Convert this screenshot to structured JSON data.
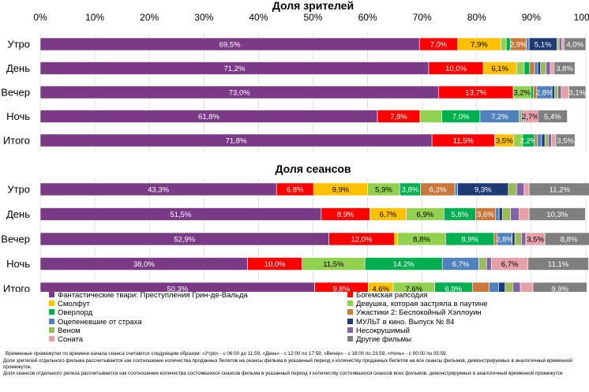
{
  "colors": {
    "Фантастические твари: Преступления Грин-де-Вальда": "#7b3a86",
    "Богемская рапсодия": "#ff0000",
    "Смолфут": "#ffc000",
    "Девушка, которая застряла в паутине": "#92d050",
    "Оверлорд": "#00b050",
    "Ужастики 2: Беспокойный Хэллоуин": "#c9783a",
    "Оцепеневшие от страха": "#4f81bd",
    "МУЛЬТ в кино. Выпуск № 84": "#1f3a73",
    "Веном": "#9bbb59",
    "Несокрушимый": "#8064a2",
    "Соната": "#e6a0a8",
    "Другие фильмы": "#7f7f7f"
  },
  "chart_data": {
    "type": "bar",
    "orientation": "horizontal-stacked-100",
    "axis_ticks": [
      "0%",
      "10%",
      "20%",
      "30%",
      "40%",
      "50%",
      "60%",
      "70%",
      "80%",
      "90%",
      "100%"
    ],
    "xlim": [
      0,
      100
    ],
    "legend": [
      "Фантастические твари: Преступления Грин-де-Вальда",
      "Богемская рапсодия",
      "Смолфут",
      "Девушка, которая застряла в паутине",
      "Оверлорд",
      "Ужастики 2: Беспокойный Хэллоуин",
      "Оцепеневшие от страха",
      "МУЛЬТ в кино. Выпуск № 84",
      "Веном",
      "Несокрушимый",
      "Соната",
      "Другие фильмы"
    ],
    "panels": [
      {
        "title": "Доля зрителей",
        "categories": [
          "Утро",
          "День",
          "Вечер",
          "Ночь",
          "Итого"
        ],
        "series": [
          {
            "name": "Фантастические твари: Преступления Грин-де-Вальда",
            "values": [
              69.5,
              71.2,
              73.0,
              61.8,
              71.8
            ],
            "labels": [
              "69,5%",
              "71,2%",
              "73,0%",
              "61,8%",
              "71,8%"
            ]
          },
          {
            "name": "Богемская рапсодия",
            "values": [
              7.0,
              10.0,
              13.7,
              7.8,
              11.5
            ],
            "labels": [
              "7,0%",
              "10,0%",
              "13,7%",
              "7,8%",
              "11,5%"
            ]
          },
          {
            "name": "Смолфут",
            "values": [
              7.9,
              6.1,
              0.0,
              0.0,
              3.5
            ],
            "labels": [
              "7,9%",
              "6,1%",
              "",
              "",
              "3,5%"
            ]
          },
          {
            "name": "Девушка, которая застряла в паутине",
            "values": [
              1.0,
              1.4,
              3.2,
              4.0,
              1.6
            ],
            "labels": [
              "",
              "",
              "3,2%",
              "",
              ""
            ]
          },
          {
            "name": "Оверлорд",
            "values": [
              0.8,
              1.0,
              0.5,
              7.0,
              2.2
            ],
            "labels": [
              "",
              "",
              "",
              "7,0%",
              "2,2%"
            ]
          },
          {
            "name": "Ужастики 2: Беспокойный Хэллоуин",
            "values": [
              2.9,
              0.9,
              0.6,
              0.0,
              0.5
            ],
            "labels": [
              "2,9%",
              "",
              "",
              "",
              ""
            ]
          },
          {
            "name": "Оцепеневшие от страха",
            "values": [
              0.5,
              0.6,
              2.8,
              7.2,
              0.8
            ],
            "labels": [
              "",
              "",
              "2,8%",
              "7,2%",
              ""
            ]
          },
          {
            "name": "МУЛЬТ в кино. Выпуск № 84",
            "values": [
              5.1,
              0.5,
              0.5,
              0.0,
              0.6
            ],
            "labels": [
              "5,1%",
              "",
              "",
              "",
              ""
            ]
          },
          {
            "name": "Веном",
            "values": [
              0.4,
              1.0,
              0.6,
              0.4,
              0.6
            ],
            "labels": [
              "",
              "",
              "",
              "",
              ""
            ]
          },
          {
            "name": "Несокрушимый",
            "values": [
              0.5,
              0.8,
              0.6,
              0.3,
              0.6
            ],
            "labels": [
              "",
              "",
              "",
              "",
              ""
            ]
          },
          {
            "name": "Соната",
            "values": [
              0.4,
              0.7,
              1.4,
              2.7,
              0.8
            ],
            "labels": [
              "",
              "",
              "",
              "2,7%",
              ""
            ]
          },
          {
            "name": "Другие фильмы",
            "values": [
              4.0,
              3.8,
              3.1,
              5.4,
              3.5
            ],
            "labels": [
              "4,0%",
              "3,8%",
              "3,1%",
              "5,4%",
              "3,5%"
            ]
          }
        ]
      },
      {
        "title": "Доля сеансов",
        "categories": [
          "Утро",
          "День",
          "Вечер",
          "Ночь",
          "Итого"
        ],
        "series": [
          {
            "name": "Фантастические твари: Преступления Грин-де-Вальда",
            "values": [
              43.3,
              51.5,
              52.9,
              38.0,
              50.3
            ],
            "labels": [
              "43,3%",
              "51,5%",
              "52,9%",
              "38,0%",
              "50,3%"
            ]
          },
          {
            "name": "Богемская рапсодия",
            "values": [
              6.8,
              8.9,
              12.0,
              10.0,
              9.8
            ],
            "labels": [
              "6,8%",
              "8,9%",
              "12,0%",
              "10,0%",
              "9,8%"
            ]
          },
          {
            "name": "Смолфут",
            "values": [
              9.9,
              6.7,
              0.6,
              0.0,
              4.6
            ],
            "labels": [
              "9,9%",
              "6,7%",
              "",
              "",
              "4,6%"
            ]
          },
          {
            "name": "Девушка, которая застряла в паутине",
            "values": [
              5.9,
              6.9,
              8.8,
              11.5,
              7.6
            ],
            "labels": [
              "5,9%",
              "6,9%",
              "8,8%",
              "11,5%",
              "7,6%"
            ]
          },
          {
            "name": "Оверлорд",
            "values": [
              3.8,
              5.8,
              8.9,
              14.2,
              6.9
            ],
            "labels": [
              "3,8%",
              "5,8%",
              "8,9%",
              "14,2%",
              "6,9%"
            ]
          },
          {
            "name": "Ужастики 2: Беспокойный Хэллоуин",
            "values": [
              6.3,
              3.6,
              0.5,
              0.0,
              3.1
            ],
            "labels": [
              "6,3%",
              "3,6%",
              "",
              "",
              ""
            ]
          },
          {
            "name": "Оцепеневшие от страха",
            "values": [
              0.5,
              0.7,
              2.8,
              6.7,
              1.7
            ],
            "labels": [
              "",
              "",
              "2,8%",
              "6,7%",
              ""
            ]
          },
          {
            "name": "МУЛЬТ в кино. Выпуск № 84",
            "values": [
              9.3,
              0.6,
              0.5,
              0.0,
              1.2
            ],
            "labels": [
              "9,3%",
              "",
              "",
              "",
              ""
            ]
          },
          {
            "name": "Веном",
            "values": [
              1.5,
              1.5,
              1.2,
              1.4,
              1.4
            ],
            "labels": [
              "",
              "",
              "",
              "",
              ""
            ]
          },
          {
            "name": "Несокрушимый",
            "values": [
              1.4,
              1.6,
              0.8,
              0.9,
              1.4
            ],
            "labels": [
              "",
              "",
              "",
              "",
              ""
            ]
          },
          {
            "name": "Соната",
            "values": [
              0.9,
              1.8,
              3.5,
              6.7,
              2.3
            ],
            "labels": [
              "",
              "",
              "3,5%",
              "6,7%",
              ""
            ]
          },
          {
            "name": "Другие фильмы",
            "values": [
              11.2,
              10.3,
              8.8,
              11.1,
              9.9
            ],
            "labels": [
              "11,2%",
              "10,3%",
              "8,8%",
              "11,1%",
              "9,9%"
            ]
          }
        ]
      }
    ]
  },
  "notes": [
    "Временные промежутки по времени начала сеанса считаются следующим образом: «Утро» - с 06:00 до 11:59, «День» - с 12:00 по 17:59, «Вечер» - с 18:00 по 23:59, «Ночь» - с 00:00 по 05:59.",
    "Доля зрителей отдельного фильма рассчитывается как соотношение количества проданных билетов на сеансы фильма в указанный период к количеству проданных билетов на все сеансы фильмов, демонстрируемых в аналогичный временной промежуток.",
    "Доля сеансов отдельного релиза рассчитывается как соотношение количества состоявшихся сеансов фильма в указанный период к количеству состоявшихся сеансов всех фильмов, демонстрируемых в аналогичный временной промежуток"
  ]
}
